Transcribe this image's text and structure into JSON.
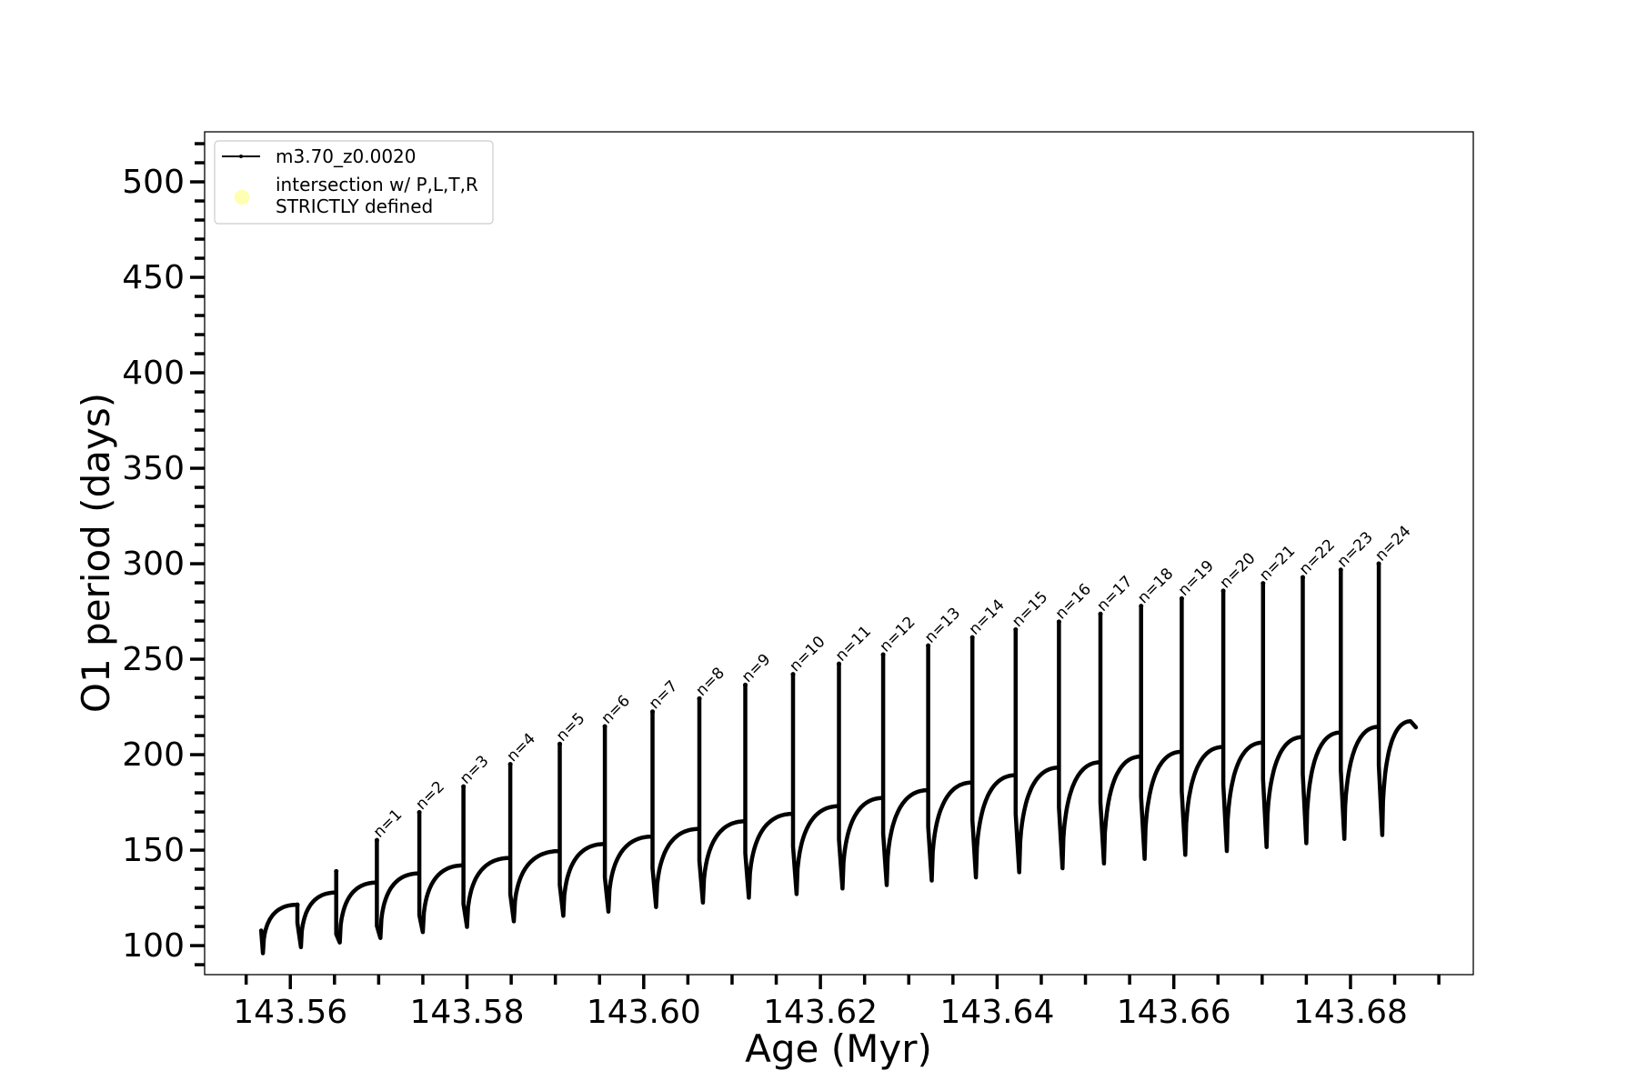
{
  "chart_data": {
    "type": "line",
    "title": "",
    "xlabel": "Age (Myr)",
    "ylabel": "O1 period (days)",
    "xlim": [
      143.5503,
      143.6939
    ],
    "ylim": [
      84.8,
      526.2
    ],
    "grid": false,
    "legend_position": "top-left",
    "xticks": [
      143.56,
      143.58,
      143.6,
      143.62,
      143.64,
      143.66,
      143.68
    ],
    "xtick_labels": [
      "143.56",
      "143.58",
      "143.60",
      "143.62",
      "143.64",
      "143.66",
      "143.68"
    ],
    "x_minor_step": 0.005,
    "yticks": [
      100,
      150,
      200,
      250,
      300,
      350,
      400,
      450,
      500
    ],
    "ytick_labels": [
      "100",
      "150",
      "200",
      "250",
      "300",
      "350",
      "400",
      "450",
      "500"
    ],
    "y_minor_step": 10,
    "legend": [
      {
        "label": "m3.70_z0.0020",
        "marker": "line-with-dot",
        "color": "#000000"
      },
      {
        "label_lines": [
          "intersection w/ P,L,T,R",
          "STRICTLY defined"
        ],
        "marker": "circle",
        "color": "#ffffb3"
      }
    ],
    "series": [
      {
        "name": "m3.70_z0.0020",
        "color": "#000000",
        "start": [
          [
            143.5567,
            107.9
          ],
          [
            143.5569,
            96.0
          ]
        ],
        "pulses": [
          {
            "label": "",
            "age": 143.5608,
            "plateau": 121.4,
            "peak": 121.4,
            "shoulder": 112.0,
            "min": 99.2
          },
          {
            "label": "",
            "age": 143.5652,
            "plateau": 127.8,
            "peak": 138.9,
            "shoulder": 106.0,
            "min": 101.6
          },
          {
            "label": "n=1",
            "age": 143.5698,
            "plateau": 133.0,
            "peak": 155.2,
            "shoulder": 110.3,
            "min": 104.0
          },
          {
            "label": "n=2",
            "age": 143.5746,
            "plateau": 137.8,
            "peak": 169.8,
            "shoulder": 115.9,
            "min": 107.1
          },
          {
            "label": "n=3",
            "age": 143.5796,
            "plateau": 142.0,
            "peak": 183.3,
            "shoulder": 121.9,
            "min": 109.8
          },
          {
            "label": "n=4",
            "age": 143.5849,
            "plateau": 145.9,
            "peak": 195.0,
            "shoulder": 127.0,
            "min": 112.7
          },
          {
            "label": "n=5",
            "age": 143.5905,
            "plateau": 149.5,
            "peak": 205.6,
            "shoulder": 131.7,
            "min": 115.6
          },
          {
            "label": "n=6",
            "age": 143.5956,
            "plateau": 153.2,
            "peak": 214.8,
            "shoulder": 135.7,
            "min": 117.8
          },
          {
            "label": "n=7",
            "age": 143.601,
            "plateau": 157.1,
            "peak": 222.5,
            "shoulder": 140.5,
            "min": 120.2
          },
          {
            "label": "n=8",
            "age": 143.6063,
            "plateau": 161.1,
            "peak": 229.4,
            "shoulder": 144.5,
            "min": 122.5
          },
          {
            "label": "n=9",
            "age": 143.6115,
            "plateau": 165.1,
            "peak": 236.5,
            "shoulder": 148.4,
            "min": 125.1
          },
          {
            "label": "n=10",
            "age": 143.6169,
            "plateau": 169.0,
            "peak": 242.1,
            "shoulder": 152.0,
            "min": 127.0
          },
          {
            "label": "n=11",
            "age": 143.6221,
            "plateau": 173.0,
            "peak": 247.6,
            "shoulder": 155.6,
            "min": 129.9
          },
          {
            "label": "n=12",
            "age": 143.6271,
            "plateau": 177.3,
            "peak": 252.4,
            "shoulder": 158.7,
            "min": 131.7
          },
          {
            "label": "n=13",
            "age": 143.6322,
            "plateau": 181.4,
            "peak": 257.1,
            "shoulder": 162.2,
            "min": 134.1
          },
          {
            "label": "n=14",
            "age": 143.6372,
            "plateau": 185.4,
            "peak": 261.4,
            "shoulder": 165.9,
            "min": 135.7
          },
          {
            "label": "n=15",
            "age": 143.6421,
            "plateau": 189.2,
            "peak": 265.5,
            "shoulder": 169.0,
            "min": 138.4
          },
          {
            "label": "n=16",
            "age": 143.647,
            "plateau": 193.2,
            "peak": 269.6,
            "shoulder": 172.2,
            "min": 140.5
          },
          {
            "label": "n=17",
            "age": 143.6517,
            "plateau": 196.0,
            "peak": 273.7,
            "shoulder": 175.0,
            "min": 143.0
          },
          {
            "label": "n=18",
            "age": 143.6563,
            "plateau": 199.0,
            "peak": 277.8,
            "shoulder": 178.0,
            "min": 145.4
          },
          {
            "label": "n=19",
            "age": 143.6609,
            "plateau": 201.5,
            "peak": 281.8,
            "shoulder": 181.0,
            "min": 147.5
          },
          {
            "label": "n=20",
            "age": 143.6656,
            "plateau": 204.0,
            "peak": 285.8,
            "shoulder": 184.5,
            "min": 149.5
          },
          {
            "label": "n=21",
            "age": 143.6701,
            "plateau": 206.3,
            "peak": 289.7,
            "shoulder": 187.3,
            "min": 151.6
          },
          {
            "label": "n=22",
            "age": 143.6746,
            "plateau": 209.2,
            "peak": 292.9,
            "shoulder": 189.7,
            "min": 153.6
          },
          {
            "label": "n=23",
            "age": 143.6789,
            "plateau": 211.6,
            "peak": 296.8,
            "shoulder": 192.1,
            "min": 155.9
          },
          {
            "label": "n=24",
            "age": 143.6832,
            "plateau": 214.6,
            "peak": 300.0,
            "shoulder": 194.4,
            "min": 157.9
          }
        ],
        "end": [
          [
            143.6868,
            217.5
          ],
          [
            143.6874,
            214.3
          ]
        ]
      }
    ]
  }
}
